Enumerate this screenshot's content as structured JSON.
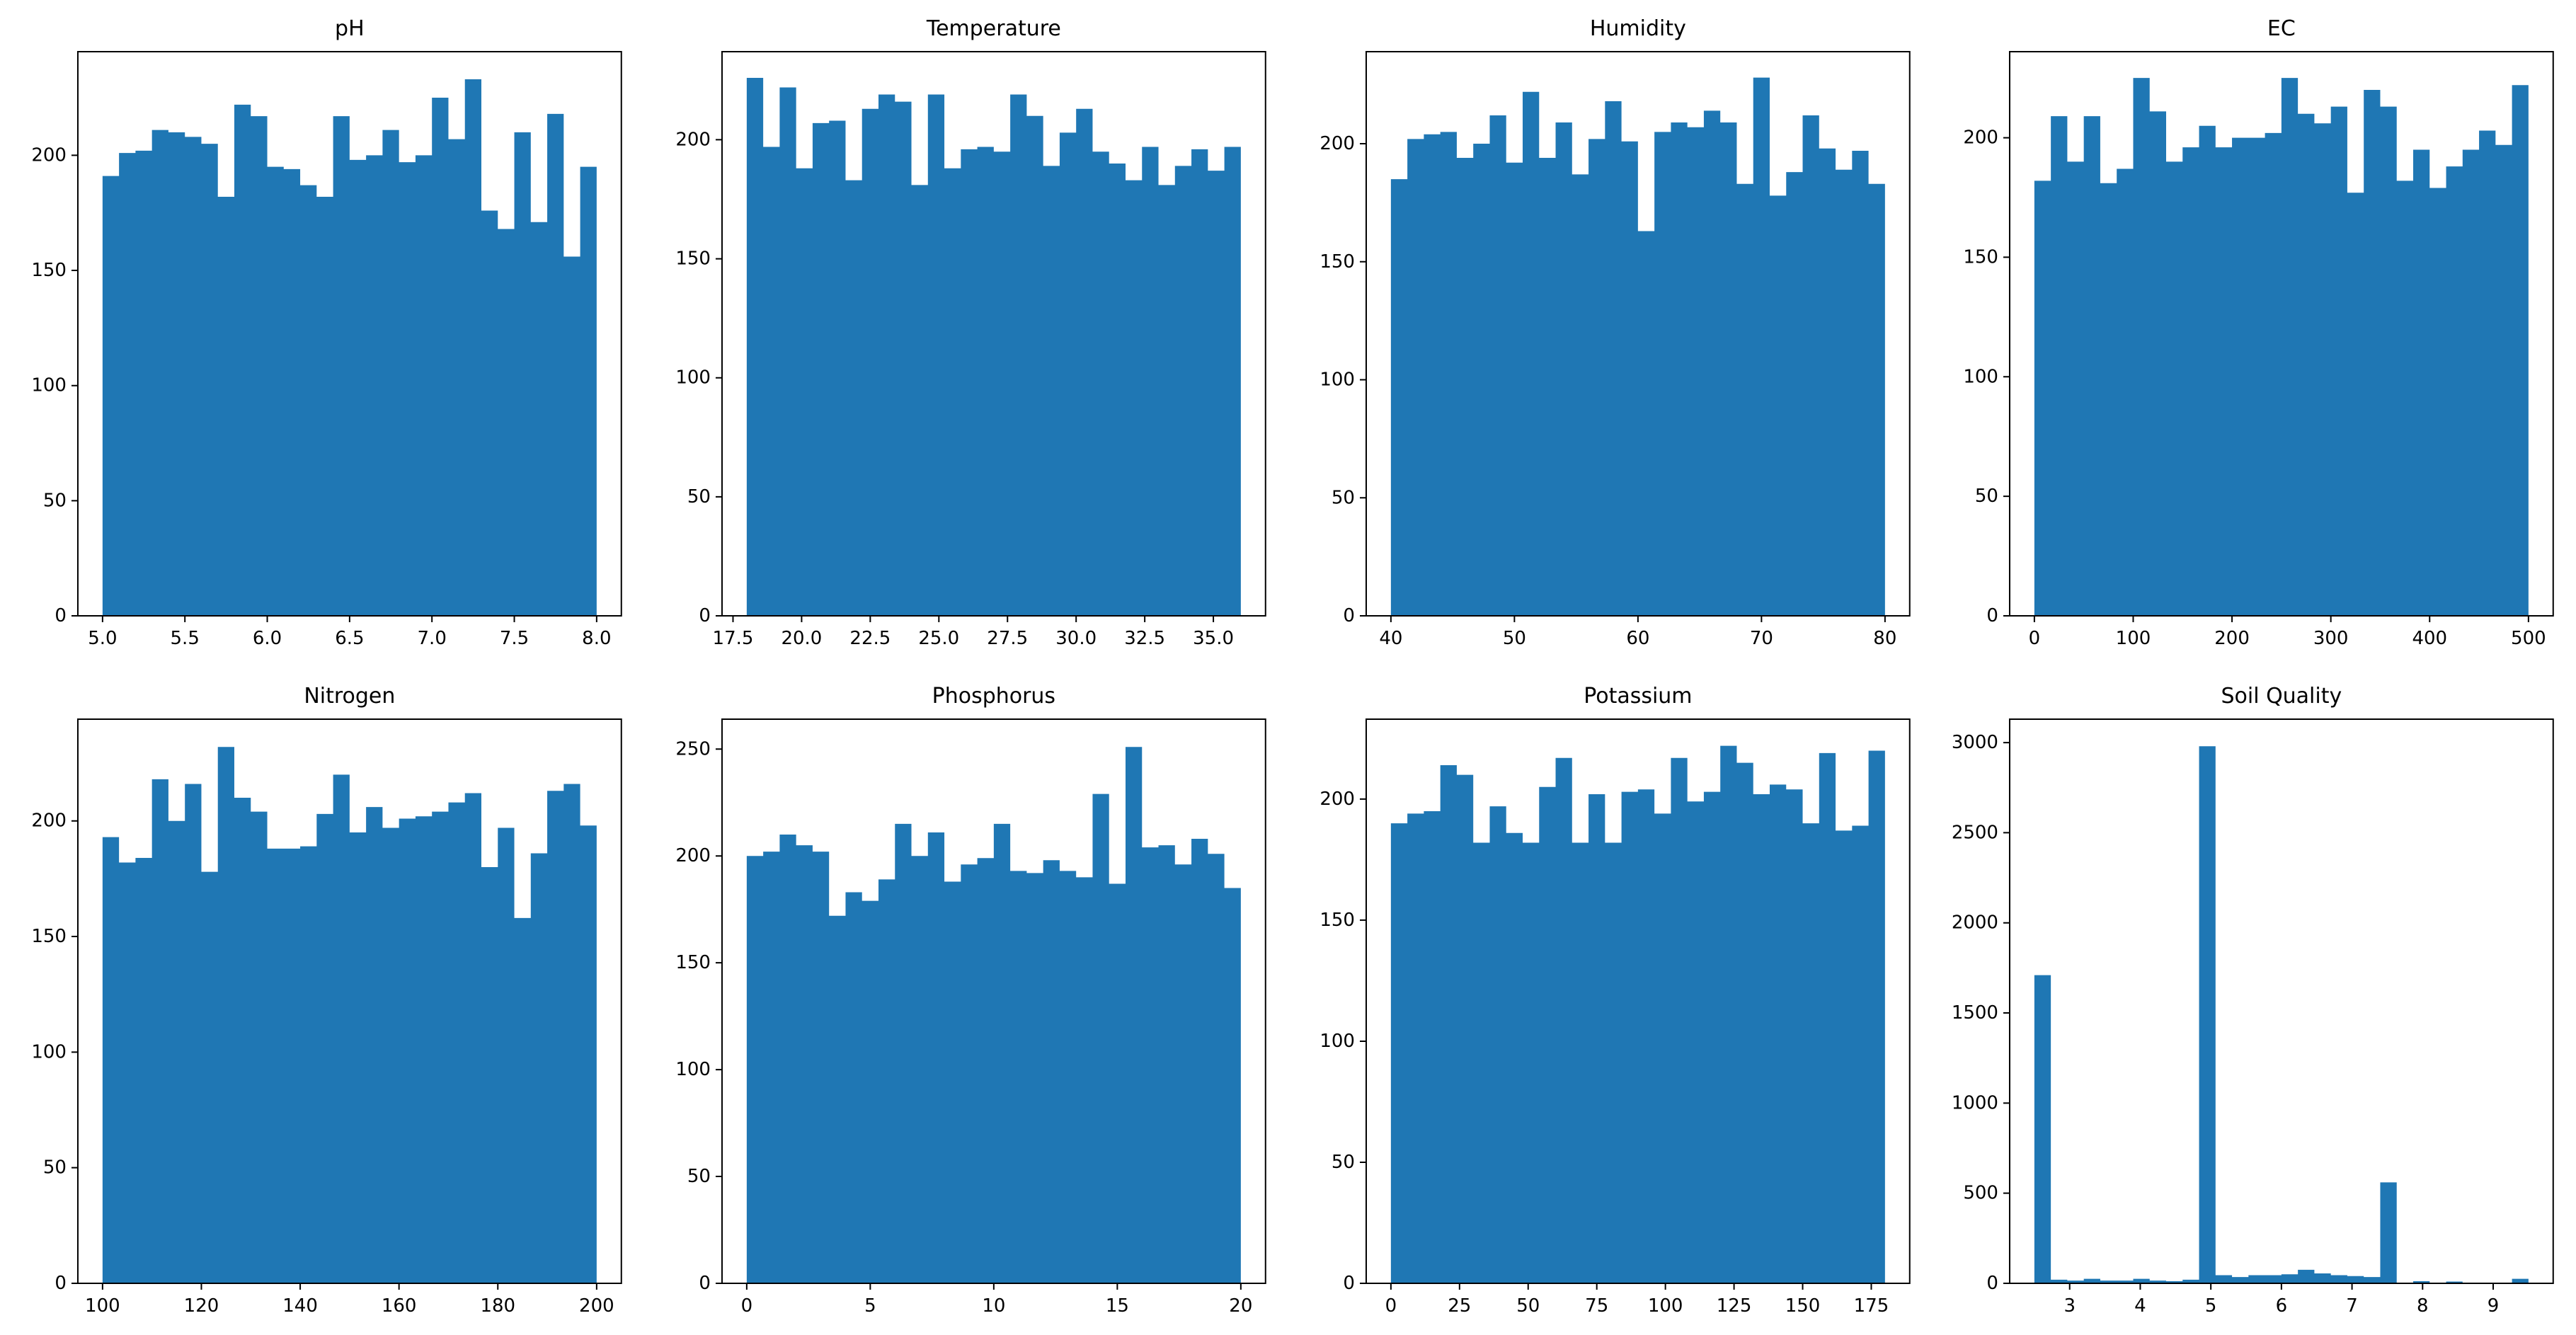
{
  "figure": {
    "background": "#ffffff",
    "bar_color": "#1f77b4",
    "axis_color": "#000000",
    "rows": 2,
    "cols": 4
  },
  "chart_data": [
    {
      "type": "bar",
      "title": "pH",
      "bins": 30,
      "bin_start": 5.0,
      "bin_width": 0.1,
      "counts": [
        191,
        201,
        202,
        211,
        210,
        208,
        205,
        182,
        222,
        217,
        195,
        194,
        187,
        182,
        217,
        198,
        200,
        211,
        197,
        200,
        225,
        207,
        233,
        176,
        168,
        210,
        171,
        218,
        156,
        195
      ],
      "xlim": [
        4.85,
        8.15
      ],
      "ylim": [
        0,
        245
      ],
      "x_tick_values": [
        5.0,
        5.5,
        6.0,
        6.5,
        7.0,
        7.5,
        8.0
      ],
      "x_tick_labels": [
        "5.0",
        "5.5",
        "6.0",
        "6.5",
        "7.0",
        "7.5",
        "8.0"
      ],
      "y_tick_values": [
        0,
        50,
        100,
        150,
        200
      ],
      "y_tick_labels": [
        "0",
        "50",
        "100",
        "150",
        "200"
      ],
      "grid": false,
      "legend": null
    },
    {
      "type": "bar",
      "title": "Temperature",
      "bins": 30,
      "bin_start": 18.0,
      "bin_width": 0.6,
      "counts": [
        226,
        197,
        222,
        188,
        207,
        208,
        183,
        213,
        219,
        216,
        181,
        219,
        188,
        196,
        197,
        195,
        219,
        210,
        189,
        203,
        213,
        195,
        190,
        183,
        197,
        181,
        189,
        196,
        187,
        197
      ],
      "xlim": [
        17.1,
        36.9
      ],
      "ylim": [
        0,
        237
      ],
      "x_tick_values": [
        17.5,
        20.0,
        22.5,
        25.0,
        27.5,
        30.0,
        32.5,
        35.0
      ],
      "x_tick_labels": [
        "17.5",
        "20.0",
        "22.5",
        "25.0",
        "27.5",
        "30.0",
        "32.5",
        "35.0"
      ],
      "y_tick_values": [
        0,
        50,
        100,
        150,
        200
      ],
      "y_tick_labels": [
        "0",
        "50",
        "100",
        "150",
        "200"
      ],
      "grid": false,
      "legend": null
    },
    {
      "type": "bar",
      "title": "Humidity",
      "bins": 30,
      "bin_start": 40.0,
      "bin_width": 1.3333333,
      "counts": [
        185,
        202,
        204,
        205,
        194,
        200,
        212,
        192,
        222,
        194,
        209,
        187,
        202,
        218,
        201,
        163,
        205,
        209,
        207,
        214,
        209,
        183,
        228,
        178,
        188,
        212,
        198,
        189,
        197,
        183
      ],
      "xlim": [
        38.0,
        82.0
      ],
      "ylim": [
        0,
        239
      ],
      "x_tick_values": [
        40,
        50,
        60,
        70,
        80
      ],
      "x_tick_labels": [
        "40",
        "50",
        "60",
        "70",
        "80"
      ],
      "y_tick_values": [
        0,
        50,
        100,
        150,
        200
      ],
      "y_tick_labels": [
        "0",
        "50",
        "100",
        "150",
        "200"
      ],
      "grid": false,
      "legend": null
    },
    {
      "type": "bar",
      "title": "EC",
      "bins": 30,
      "bin_start": 0.0,
      "bin_width": 16.6666667,
      "counts": [
        182,
        209,
        190,
        209,
        181,
        187,
        225,
        211,
        190,
        196,
        205,
        196,
        200,
        200,
        202,
        225,
        210,
        206,
        213,
        177,
        220,
        213,
        182,
        195,
        179,
        188,
        195,
        203,
        197,
        222
      ],
      "xlim": [
        -25,
        525
      ],
      "ylim": [
        0,
        236
      ],
      "x_tick_values": [
        0,
        100,
        200,
        300,
        400,
        500
      ],
      "x_tick_labels": [
        "0",
        "100",
        "200",
        "300",
        "400",
        "500"
      ],
      "y_tick_values": [
        0,
        50,
        100,
        150,
        200
      ],
      "y_tick_labels": [
        "0",
        "50",
        "100",
        "150",
        "200"
      ],
      "grid": false,
      "legend": null
    },
    {
      "type": "bar",
      "title": "Nitrogen",
      "bins": 30,
      "bin_start": 100.0,
      "bin_width": 3.3333333,
      "counts": [
        193,
        182,
        184,
        218,
        200,
        216,
        178,
        232,
        210,
        204,
        188,
        188,
        189,
        203,
        220,
        195,
        206,
        197,
        201,
        202,
        204,
        208,
        212,
        180,
        197,
        158,
        186,
        213,
        216,
        198
      ],
      "xlim": [
        95,
        205
      ],
      "ylim": [
        0,
        244
      ],
      "x_tick_values": [
        100,
        120,
        140,
        160,
        180,
        200
      ],
      "x_tick_labels": [
        "100",
        "120",
        "140",
        "160",
        "180",
        "200"
      ],
      "y_tick_values": [
        0,
        50,
        100,
        150,
        200
      ],
      "y_tick_labels": [
        "0",
        "50",
        "100",
        "150",
        "200"
      ],
      "grid": false,
      "legend": null
    },
    {
      "type": "bar",
      "title": "Phosphorus",
      "bins": 30,
      "bin_start": 0.0,
      "bin_width": 0.6666667,
      "counts": [
        200,
        202,
        210,
        205,
        202,
        172,
        183,
        179,
        189,
        215,
        200,
        211,
        188,
        196,
        199,
        215,
        193,
        192,
        198,
        193,
        190,
        229,
        187,
        251,
        204,
        205,
        196,
        208,
        201,
        185
      ],
      "xlim": [
        -1,
        21
      ],
      "ylim": [
        0,
        264
      ],
      "x_tick_values": [
        0,
        5,
        10,
        15,
        20
      ],
      "x_tick_labels": [
        "0",
        "5",
        "10",
        "15",
        "20"
      ],
      "y_tick_values": [
        0,
        50,
        100,
        150,
        200,
        250
      ],
      "y_tick_labels": [
        "0",
        "50",
        "100",
        "150",
        "200",
        "250"
      ],
      "grid": false,
      "legend": null
    },
    {
      "type": "bar",
      "title": "Potassium",
      "bins": 30,
      "bin_start": 0.0,
      "bin_width": 6.0,
      "counts": [
        190,
        194,
        195,
        214,
        210,
        182,
        197,
        186,
        182,
        205,
        217,
        182,
        202,
        182,
        203,
        204,
        194,
        217,
        199,
        203,
        222,
        215,
        202,
        206,
        204,
        190,
        219,
        187,
        189,
        220
      ],
      "xlim": [
        -9,
        189
      ],
      "ylim": [
        0,
        233
      ],
      "x_tick_values": [
        0,
        25,
        50,
        75,
        100,
        125,
        150,
        175
      ],
      "x_tick_labels": [
        "0",
        "25",
        "50",
        "75",
        "100",
        "125",
        "150",
        "175"
      ],
      "y_tick_values": [
        0,
        50,
        100,
        150,
        200
      ],
      "y_tick_labels": [
        "0",
        "50",
        "100",
        "150",
        "200"
      ],
      "grid": false,
      "legend": null
    },
    {
      "type": "bar",
      "title": "Soil Quality",
      "bins": 30,
      "bin_start": 2.5,
      "bin_width": 0.2333333,
      "counts": [
        1710,
        20,
        15,
        25,
        15,
        15,
        25,
        15,
        12,
        20,
        2980,
        45,
        35,
        45,
        45,
        50,
        75,
        55,
        45,
        40,
        35,
        560,
        3,
        12,
        3,
        10,
        3,
        3,
        3,
        25
      ],
      "xlim": [
        2.15,
        9.85
      ],
      "ylim": [
        0,
        3130
      ],
      "x_tick_values": [
        3,
        4,
        5,
        6,
        7,
        8,
        9
      ],
      "x_tick_labels": [
        "3",
        "4",
        "5",
        "6",
        "7",
        "8",
        "9"
      ],
      "y_tick_values": [
        0,
        500,
        1000,
        1500,
        2000,
        2500,
        3000
      ],
      "y_tick_labels": [
        "0",
        "500",
        "1000",
        "1500",
        "2000",
        "2500",
        "3000"
      ],
      "grid": false,
      "legend": null
    }
  ]
}
